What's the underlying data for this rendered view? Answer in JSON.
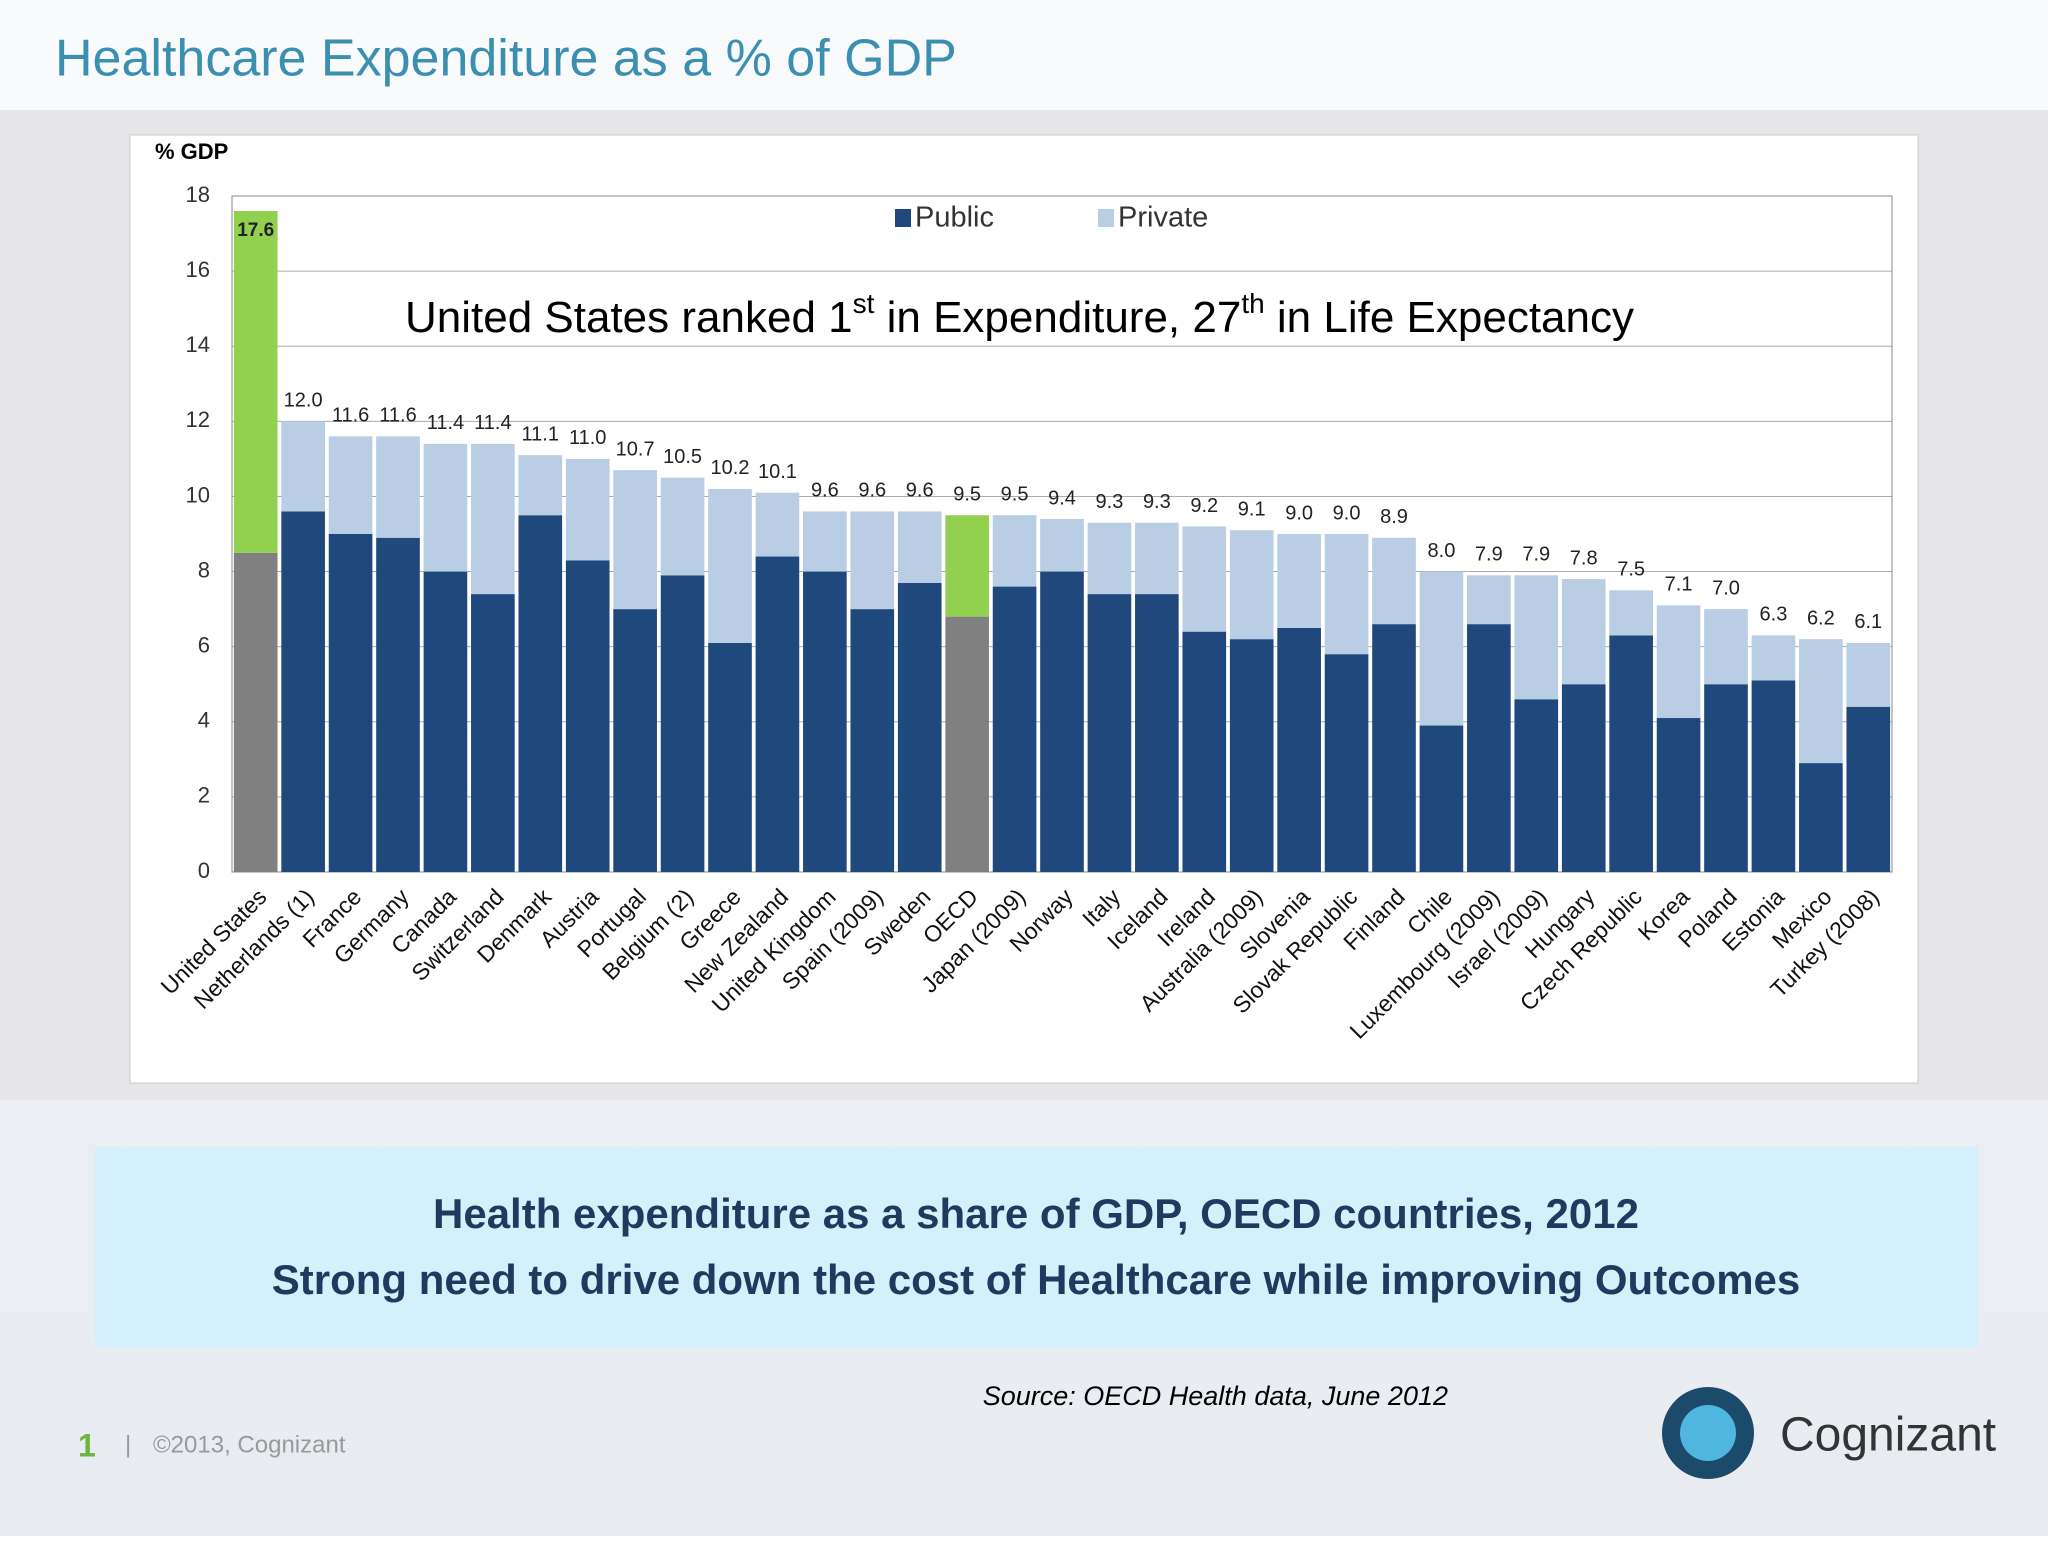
{
  "slide": {
    "title": "Healthcare Expenditure as a % of GDP",
    "caption_lines": [
      "Health expenditure as a share of GDP, OECD countries, 2012",
      "Strong need to drive down the cost of Healthcare while improving Outcomes"
    ],
    "source": "Source: OECD Health data, June 2012",
    "page_number": "1",
    "separator": "|",
    "copyright": "©2013, Cognizant",
    "logo_text": "Cognizant"
  },
  "chart_data": {
    "type": "stacked_bar",
    "y_label": "% GDP",
    "annotation_parts": [
      "United States ranked 1",
      "st",
      " in Expenditure, 27",
      "th",
      " in Life Expectancy"
    ],
    "categories": [
      "United States",
      "Netherlands (1)",
      "France",
      "Germany",
      "Canada",
      "Switzerland",
      "Denmark",
      "Austria",
      "Portugal",
      "Belgium (2)",
      "Greece",
      "New Zealand",
      "United Kingdom",
      "Spain (2009)",
      "Sweden",
      "OECD",
      "Japan (2009)",
      "Norway",
      "Italy",
      "Iceland",
      "Ireland",
      "Australia (2009)",
      "Slovenia",
      "Slovak Republic",
      "Finland",
      "Chile",
      "Luxembourg (2009)",
      "Israel (2009)",
      "Hungary",
      "Czech Republic",
      "Korea",
      "Poland",
      "Estonia",
      "Mexico",
      "Turkey (2008)"
    ],
    "series": [
      {
        "name": "Public",
        "color": "#1f497d",
        "values": [
          8.5,
          9.6,
          9.0,
          8.9,
          8.0,
          7.4,
          9.5,
          8.3,
          7.0,
          7.9,
          6.1,
          8.4,
          8.0,
          7.0,
          7.7,
          6.8,
          7.6,
          8.0,
          7.4,
          7.4,
          6.4,
          6.2,
          6.5,
          5.8,
          6.6,
          3.9,
          6.6,
          4.6,
          5.0,
          6.3,
          4.1,
          5.0,
          5.1,
          2.9,
          4.4
        ],
        "colors": [
          "#808080",
          "#1f497d",
          "#1f497d",
          "#1f497d",
          "#1f497d",
          "#1f497d",
          "#1f497d",
          "#1f497d",
          "#1f497d",
          "#1f497d",
          "#1f497d",
          "#1f497d",
          "#1f497d",
          "#1f497d",
          "#1f497d",
          "#808080",
          "#1f497d",
          "#1f497d",
          "#1f497d",
          "#1f497d",
          "#1f497d",
          "#1f497d",
          "#1f497d",
          "#1f497d",
          "#1f497d",
          "#1f497d",
          "#1f497d",
          "#1f497d",
          "#1f497d",
          "#1f497d",
          "#1f497d",
          "#1f497d",
          "#1f497d",
          "#1f497d",
          "#1f497d"
        ]
      },
      {
        "name": "Private",
        "color": "#b9cde5",
        "values": [
          9.1,
          2.4,
          2.6,
          2.7,
          3.4,
          4.0,
          1.6,
          2.7,
          3.7,
          2.6,
          4.1,
          1.7,
          1.6,
          2.6,
          1.9,
          2.7,
          1.9,
          1.4,
          1.9,
          1.9,
          2.8,
          2.9,
          2.5,
          3.2,
          2.3,
          4.1,
          1.3,
          3.3,
          2.8,
          1.2,
          3.0,
          2.0,
          1.2,
          3.3,
          1.7
        ],
        "colors": [
          "#92d050",
          "#b9cde5",
          "#b9cde5",
          "#b9cde5",
          "#b9cde5",
          "#b9cde5",
          "#b9cde5",
          "#b9cde5",
          "#b9cde5",
          "#b9cde5",
          "#b9cde5",
          "#b9cde5",
          "#b9cde5",
          "#b9cde5",
          "#b9cde5",
          "#92d050",
          "#b9cde5",
          "#b9cde5",
          "#b9cde5",
          "#b9cde5",
          "#b9cde5",
          "#b9cde5",
          "#b9cde5",
          "#b9cde5",
          "#b9cde5",
          "#b9cde5",
          "#b9cde5",
          "#b9cde5",
          "#b9cde5",
          "#b9cde5",
          "#b9cde5",
          "#b9cde5",
          "#b9cde5",
          "#b9cde5",
          "#b9cde5"
        ]
      }
    ],
    "totals": [
      17.6,
      12.0,
      11.6,
      11.6,
      11.4,
      11.4,
      11.1,
      11.0,
      10.7,
      10.5,
      10.2,
      10.1,
      9.6,
      9.6,
      9.6,
      9.5,
      9.5,
      9.4,
      9.3,
      9.3,
      9.2,
      9.1,
      9.0,
      9.0,
      8.9,
      8.0,
      7.9,
      7.9,
      7.8,
      7.5,
      7.1,
      7.0,
      6.3,
      6.2,
      6.1
    ],
    "total_labels": [
      "17.6",
      "12.0",
      "11.6",
      "11.6",
      "11.4",
      "11.4",
      "11.1",
      "11.0",
      "10.7",
      "10.5",
      "10.2",
      "10.1",
      "9.6",
      "9.6",
      "9.6",
      "9.5",
      "9.5",
      "9.4",
      "9.3",
      "9.3",
      "9.2",
      "9.1",
      "9.0",
      "9.0",
      "8.9",
      "8.0",
      "7.9",
      "7.9",
      "7.8",
      "7.5",
      "7.1",
      "7.0",
      "6.3",
      "6.2",
      "6.1"
    ],
    "ylim": [
      0,
      18
    ],
    "yticks": [
      0,
      2,
      4,
      6,
      8,
      10,
      12,
      14,
      16,
      18
    ],
    "grid": true,
    "legend": "top"
  }
}
